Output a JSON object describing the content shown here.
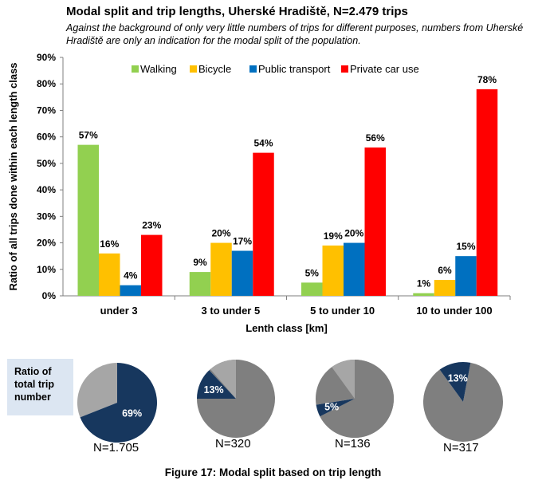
{
  "title": "Modal split and trip lengths, Uherské Hradiště, N=2.479 trips",
  "subtitle": "Against the background of only very little numbers of trips for different purposes, numbers from Uherské Hradiště are only an indication for the modal split of the population.",
  "chart_data": {
    "type": "bar",
    "ylabel": "Ratio of all trips done within each length class",
    "xlabel": "Lenth class [km]",
    "ylim": [
      0,
      90
    ],
    "yticks": [
      "0%",
      "10%",
      "20%",
      "30%",
      "40%",
      "50%",
      "60%",
      "70%",
      "80%",
      "90%"
    ],
    "legend_position": "top",
    "categories": [
      "under 3",
      "3 to under 5",
      "5 to under 10",
      "10 to under 100"
    ],
    "series": [
      {
        "name": "Walking",
        "color": "#92d050",
        "values": [
          57,
          9,
          5,
          1
        ],
        "labels": [
          "57%",
          "9%",
          "5%",
          "1%"
        ]
      },
      {
        "name": "Bicycle",
        "color": "#ffc000",
        "values": [
          16,
          20,
          19,
          6
        ],
        "labels": [
          "16%",
          "20%",
          "19%",
          "6%"
        ]
      },
      {
        "name": "Public transport",
        "color": "#0070c0",
        "values": [
          4,
          17,
          20,
          15
        ],
        "labels": [
          "4%",
          "17%",
          "20%",
          "15%"
        ]
      },
      {
        "name": "Private car use",
        "color": "#ff0000",
        "values": [
          23,
          54,
          56,
          78
        ],
        "labels": [
          "23%",
          "54%",
          "56%",
          "78%"
        ]
      }
    ]
  },
  "pies": {
    "label": [
      "Ratio of",
      "total trip",
      "number"
    ],
    "items": [
      {
        "value": 69,
        "label": "69%",
        "n": "N=1.705"
      },
      {
        "value": 13,
        "label": "13%",
        "n": "N=320"
      },
      {
        "value": 5,
        "label": "5%",
        "n": "N=136"
      },
      {
        "value": 13,
        "label": "13%",
        "n": "N=317"
      }
    ],
    "colors": {
      "highlight": "#17375e",
      "rest": "#7f7f7f",
      "light": "#a6a6a6"
    }
  },
  "caption": "Figure 17: Modal split based on trip length"
}
